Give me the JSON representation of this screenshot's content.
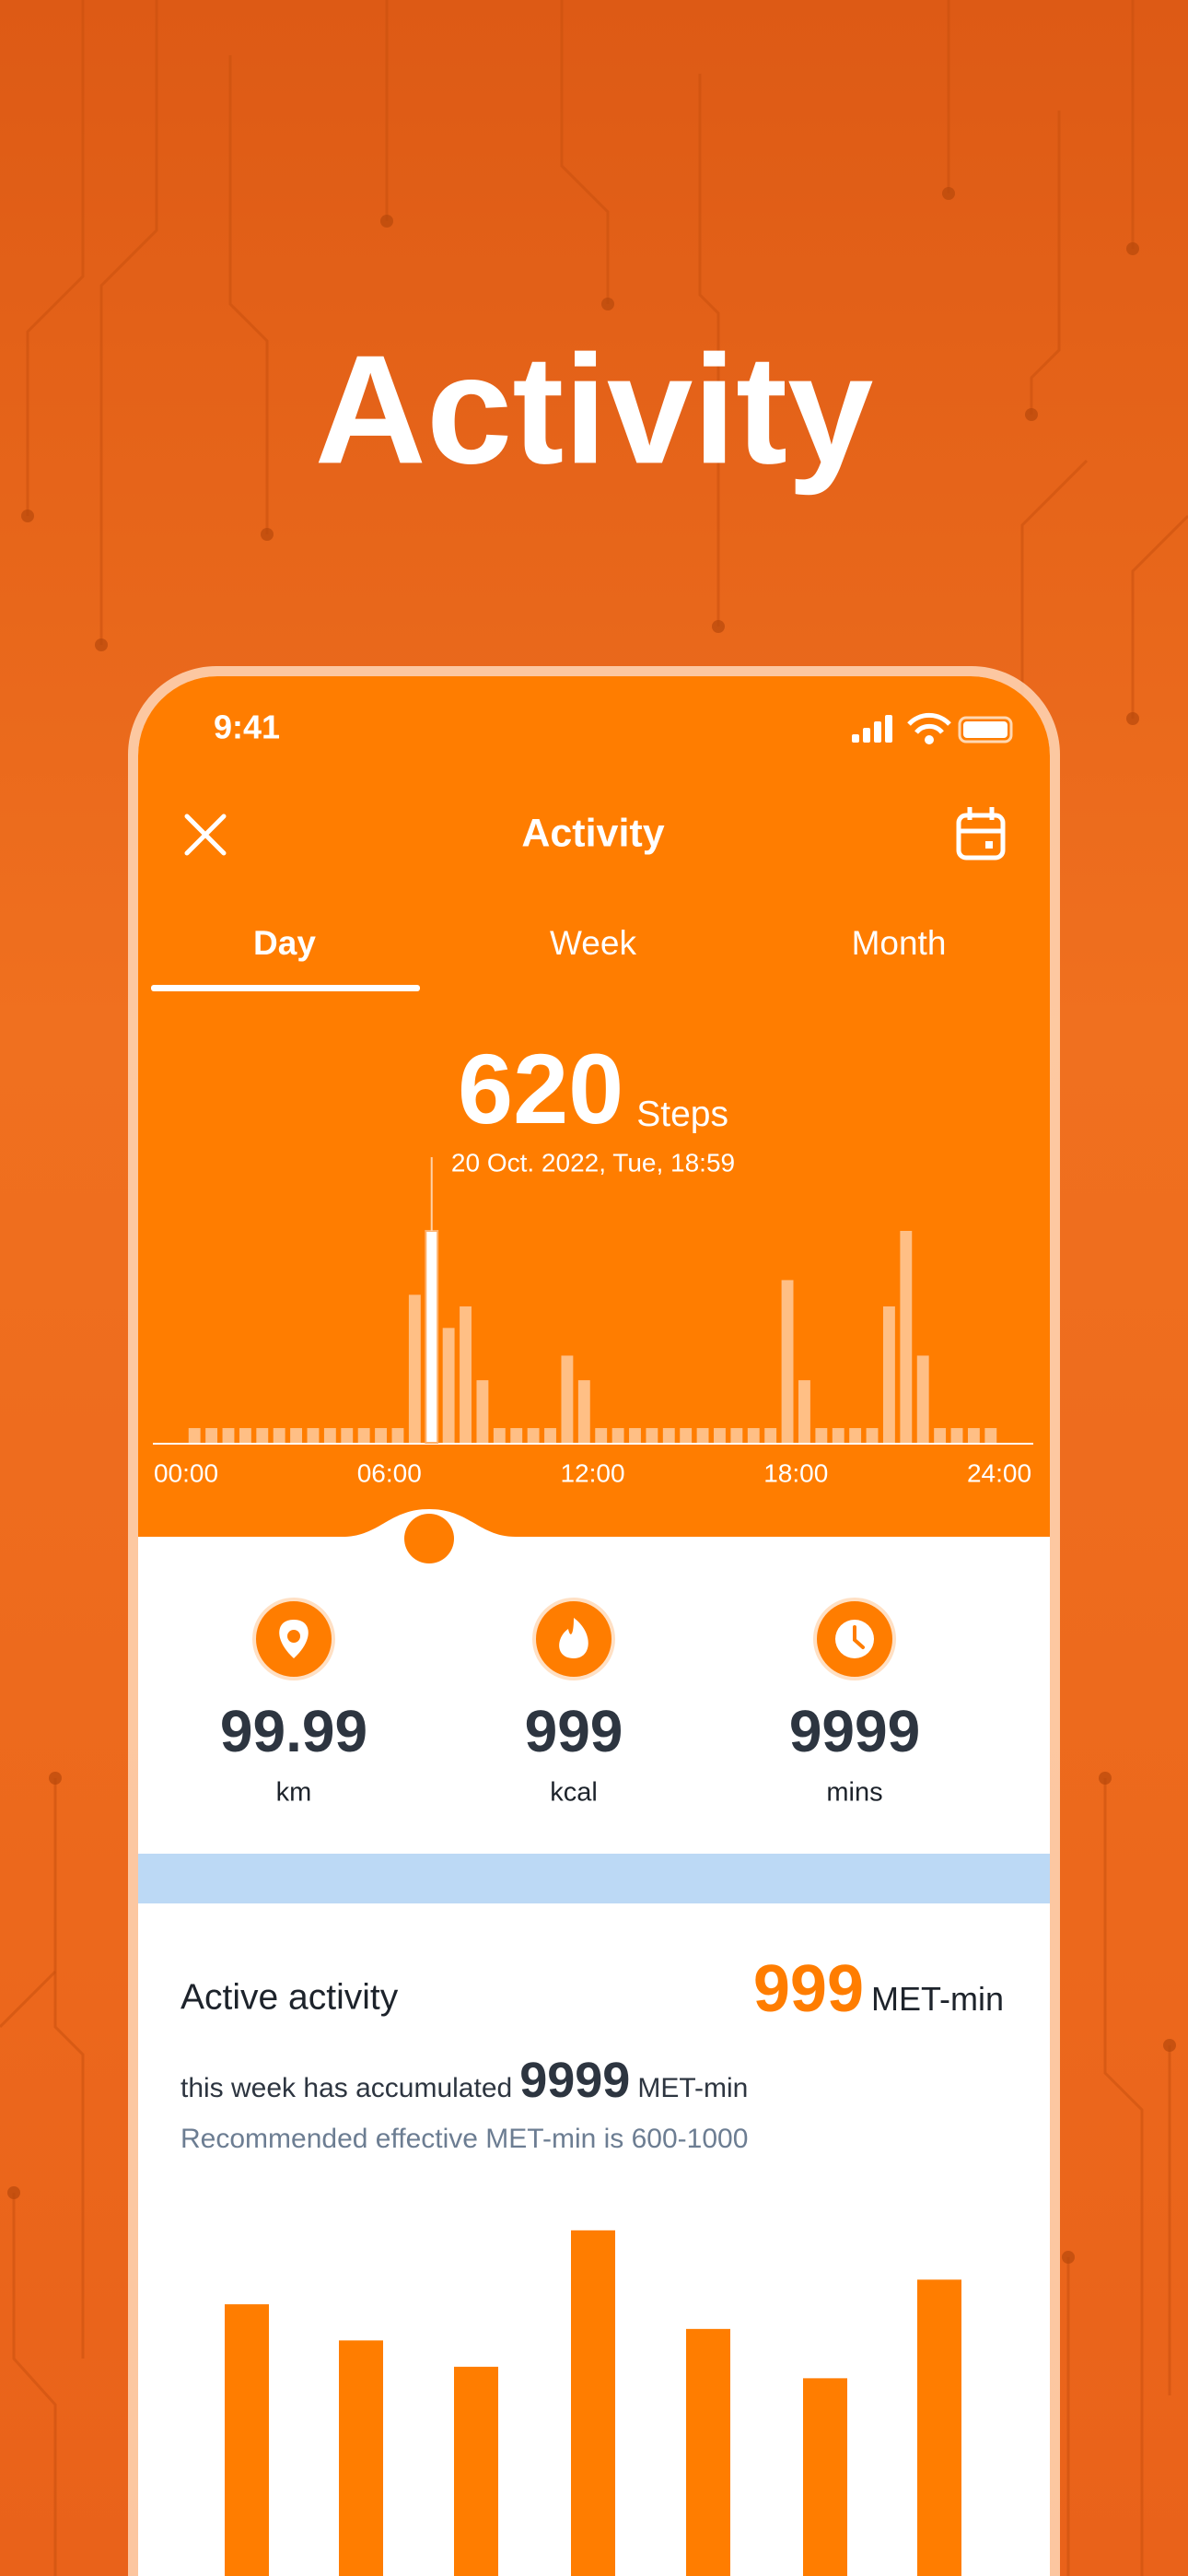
{
  "header": {
    "title": "Activity"
  },
  "status_bar": {
    "time": "9:41"
  },
  "screen": {
    "title": "Activity",
    "tabs": [
      "Day",
      "Week",
      "Month"
    ]
  },
  "chart_data": [
    {
      "type": "bar",
      "title": "620",
      "unit": "Steps",
      "subtitle": "20 Oct. 2022, Tue, 18:59",
      "x": [
        0,
        0.5,
        1,
        1.5,
        2,
        2.5,
        3,
        3.5,
        4,
        4.5,
        5,
        5.5,
        6,
        6.5,
        7,
        7.5,
        8,
        8.5,
        9,
        9.5,
        10,
        10.5,
        11,
        11.5,
        12,
        12.5,
        13,
        13.5,
        14,
        14.5,
        15,
        15.5,
        16,
        16.5,
        17,
        17.5,
        18,
        18.5,
        19,
        19.5,
        20,
        20.5,
        21,
        21.5,
        22,
        22.5,
        23,
        23.5
      ],
      "values": [
        43,
        43,
        43,
        43,
        43,
        43,
        43,
        43,
        43,
        43,
        43,
        43,
        43,
        433,
        620,
        336,
        399,
        183,
        43,
        43,
        43,
        43,
        255,
        183,
        43,
        43,
        43,
        43,
        43,
        43,
        43,
        43,
        43,
        43,
        43,
        476,
        183,
        43,
        43,
        43,
        43,
        399,
        620,
        255,
        43,
        43,
        43,
        43
      ],
      "xlim": [
        0,
        24
      ],
      "xticks": [
        {
          "value": 0,
          "label": "00:00"
        },
        {
          "value": 6,
          "label": "06:00"
        },
        {
          "value": 12,
          "label": "12:00"
        },
        {
          "value": 18,
          "label": "18:00"
        },
        {
          "value": 24,
          "label": "24:00"
        }
      ],
      "color": "#ffbf85",
      "highlight_index": 14,
      "highlight_color": "#ffffff"
    },
    {
      "type": "bar",
      "values": [
        218,
        196,
        180,
        263,
        203,
        173,
        233
      ],
      "color": "#ff7d00"
    }
  ],
  "stats": [
    {
      "value": "99.99",
      "unit": "km"
    },
    {
      "value": "999",
      "unit": "kcal"
    },
    {
      "value": "9999",
      "unit": "mins"
    }
  ],
  "active": {
    "title": "Active activity",
    "value": "999",
    "unit": "MET-min",
    "week_prefix": "this week has accumulated",
    "week_value": "9999",
    "week_unit": "MET-min",
    "recommendation": "Recommended effective MET-min is 600-1000"
  }
}
